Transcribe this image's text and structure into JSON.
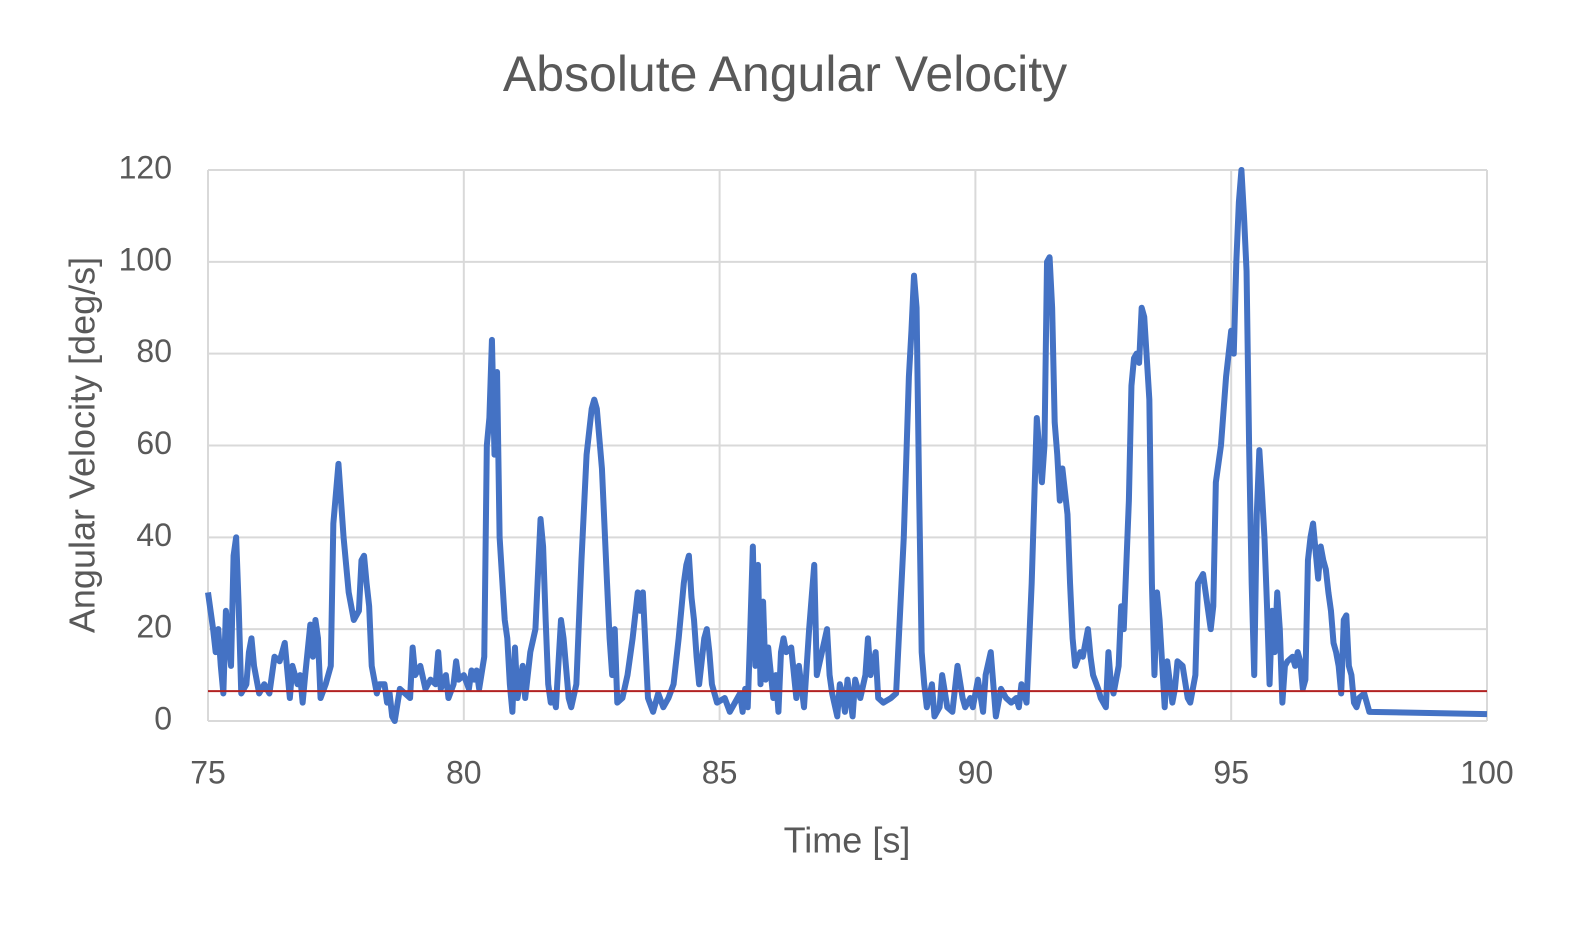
{
  "chart_data": {
    "type": "line",
    "title": "Absolute Angular Velocity",
    "x_label": "Time [s]",
    "y_label": "Angular Velocity [deg/s]",
    "xlim": [
      75,
      100
    ],
    "ylim": [
      0,
      120
    ],
    "xticks": [
      75,
      80,
      85,
      90,
      95,
      100
    ],
    "yticks": [
      0,
      20,
      40,
      60,
      80,
      100,
      120
    ],
    "grid": true,
    "series": [
      {
        "color": "#4472c4",
        "x": [
          75.0,
          75.1,
          75.15,
          75.2,
          75.25,
          75.3,
          75.35,
          75.45,
          75.5,
          75.55,
          75.6,
          75.65,
          75.75,
          75.8,
          75.85,
          75.9,
          76.0,
          76.1,
          76.2,
          76.3,
          76.4,
          76.5,
          76.6,
          76.65,
          76.75,
          76.8,
          76.85,
          76.9,
          77.0,
          77.05,
          77.1,
          77.15,
          77.2,
          77.3,
          77.4,
          77.45,
          77.55,
          77.65,
          77.75,
          77.8,
          77.85,
          77.95,
          78.0,
          78.05,
          78.1,
          78.15,
          78.2,
          78.3,
          78.35,
          78.45,
          78.5,
          78.55,
          78.6,
          78.65,
          78.75,
          78.85,
          78.95,
          79.0,
          79.05,
          79.15,
          79.25,
          79.35,
          79.45,
          79.5,
          79.55,
          79.65,
          79.7,
          79.8,
          79.85,
          79.9,
          80.0,
          80.1,
          80.15,
          80.2,
          80.25,
          80.3,
          80.4,
          80.45,
          80.5,
          80.55,
          80.6,
          80.65,
          80.7,
          80.8,
          80.85,
          80.9,
          80.95,
          81.0,
          81.05,
          81.15,
          81.2,
          81.3,
          81.4,
          81.5,
          81.55,
          81.6,
          81.65,
          81.7,
          81.75,
          81.8,
          81.9,
          81.95,
          82.05,
          82.1,
          82.2,
          82.3,
          82.4,
          82.5,
          82.55,
          82.6,
          82.7,
          82.8,
          82.85,
          82.9,
          82.95,
          83.0,
          83.1,
          83.2,
          83.3,
          83.4,
          83.45,
          83.5,
          83.6,
          83.7,
          83.8,
          83.9,
          84.0,
          84.1,
          84.2,
          84.3,
          84.35,
          84.4,
          84.45,
          84.5,
          84.55,
          84.6,
          84.7,
          84.75,
          84.8,
          84.85,
          84.95,
          85.1,
          85.2,
          85.3,
          85.4,
          85.45,
          85.5,
          85.55,
          85.6,
          85.65,
          85.7,
          85.75,
          85.8,
          85.85,
          85.9,
          85.95,
          86.05,
          86.1,
          86.15,
          86.2,
          86.25,
          86.3,
          86.4,
          86.5,
          86.55,
          86.65,
          86.75,
          86.8,
          86.85,
          86.9,
          87.0,
          87.1,
          87.15,
          87.2,
          87.3,
          87.35,
          87.4,
          87.45,
          87.5,
          87.6,
          87.65,
          87.75,
          87.85,
          87.9,
          87.95,
          88.05,
          88.1,
          88.2,
          88.35,
          88.45,
          88.6,
          88.7,
          88.75,
          88.8,
          88.85,
          88.9,
          88.95,
          89.0,
          89.05,
          89.15,
          89.2,
          89.3,
          89.35,
          89.45,
          89.55,
          89.65,
          89.75,
          89.8,
          89.9,
          89.95,
          90.05,
          90.15,
          90.2,
          90.3,
          90.35,
          90.4,
          90.5,
          90.6,
          90.7,
          90.8,
          90.85,
          90.9,
          91.0,
          91.1,
          91.2,
          91.3,
          91.35,
          91.4,
          91.45,
          91.5,
          91.55,
          91.6,
          91.65,
          91.7,
          91.75,
          91.8,
          91.85,
          91.9,
          91.95,
          92.05,
          92.1,
          92.2,
          92.25,
          92.3,
          92.4,
          92.45,
          92.55,
          92.6,
          92.65,
          92.7,
          92.8,
          92.85,
          92.9,
          93.0,
          93.05,
          93.1,
          93.15,
          93.2,
          93.25,
          93.3,
          93.4,
          93.45,
          93.5,
          93.55,
          93.6,
          93.7,
          93.75,
          93.85,
          93.9,
          93.95,
          94.05,
          94.15,
          94.2,
          94.3,
          94.35,
          94.45,
          94.5,
          94.55,
          94.6,
          94.65,
          94.7,
          94.8,
          94.9,
          95.0,
          95.05,
          95.1,
          95.15,
          95.2,
          95.25,
          95.3,
          95.35,
          95.4,
          95.45,
          95.5,
          95.55,
          95.6,
          95.65,
          95.7,
          95.75,
          95.8,
          95.85,
          95.9,
          95.95,
          96.0,
          96.05,
          96.1,
          96.2,
          96.25,
          96.3,
          96.35,
          96.4,
          96.45,
          96.5,
          96.55,
          96.6,
          96.65,
          96.7,
          96.75,
          96.8,
          96.85,
          96.9,
          96.95,
          97.0,
          97.05,
          97.1,
          97.15,
          97.2,
          97.25,
          97.3,
          97.35,
          97.4,
          97.45,
          97.5,
          97.6,
          97.7,
          100.0
        ],
        "values": [
          28,
          20,
          15,
          20,
          12,
          6,
          24,
          12,
          36,
          40,
          25,
          6,
          8,
          15,
          18,
          12,
          6,
          8,
          6,
          14,
          13,
          17,
          5,
          12,
          8,
          10,
          4,
          10,
          21,
          14,
          22,
          18,
          5,
          8,
          12,
          43,
          56,
          40,
          28,
          25,
          22,
          24,
          35,
          36,
          30,
          25,
          12,
          6,
          8,
          8,
          4,
          6,
          1,
          0,
          7,
          6,
          5,
          16,
          10,
          12,
          7,
          9,
          8,
          15,
          7,
          10,
          5,
          8,
          13,
          9,
          10,
          7,
          11,
          9,
          11,
          7,
          14,
          60,
          66,
          83,
          58,
          76,
          40,
          22,
          18,
          8,
          2,
          16,
          5,
          12,
          5,
          15,
          20,
          44,
          38,
          22,
          8,
          4,
          6,
          3,
          22,
          18,
          5,
          3,
          8,
          35,
          58,
          68,
          70,
          68,
          55,
          30,
          18,
          10,
          20,
          4,
          5,
          10,
          18,
          28,
          24,
          28,
          5,
          2,
          6,
          3,
          5,
          8,
          18,
          30,
          34,
          36,
          27,
          22,
          14,
          8,
          18,
          20,
          15,
          8,
          4,
          5,
          2,
          4,
          6,
          2,
          7,
          3,
          20,
          38,
          12,
          34,
          8,
          26,
          9,
          16,
          5,
          10,
          2,
          15,
          18,
          15,
          16,
          5,
          12,
          3,
          20,
          27,
          34,
          10,
          15,
          20,
          10,
          6,
          1,
          8,
          6,
          2,
          9,
          1,
          9,
          5,
          10,
          18,
          10,
          15,
          5,
          4,
          5,
          6,
          40,
          75,
          85,
          97,
          90,
          50,
          15,
          8,
          3,
          8,
          1,
          3,
          10,
          3,
          2,
          12,
          5,
          3,
          5,
          3,
          9,
          2,
          10,
          15,
          8,
          1,
          7,
          5,
          4,
          5,
          3,
          8,
          4,
          30,
          66,
          52,
          60,
          100,
          101,
          90,
          65,
          58,
          48,
          55,
          50,
          45,
          30,
          18,
          12,
          15,
          14,
          20,
          14,
          10,
          7,
          5,
          3,
          15,
          8,
          6,
          12,
          25,
          20,
          48,
          73,
          79,
          80,
          78,
          90,
          88,
          70,
          30,
          10,
          28,
          22,
          3,
          13,
          4,
          7,
          13,
          12,
          5,
          4,
          10,
          30,
          32,
          28,
          24,
          20,
          25,
          52,
          60,
          75,
          85,
          80,
          100,
          113,
          120,
          110,
          98,
          60,
          30,
          10,
          45,
          59,
          50,
          40,
          25,
          8,
          24,
          15,
          28,
          20,
          4,
          12,
          13,
          14,
          12,
          15,
          13,
          7,
          9,
          35,
          40,
          43,
          37,
          31,
          38,
          35,
          33,
          28,
          24,
          17,
          15,
          12,
          6,
          22,
          23,
          12,
          10,
          4,
          3,
          5,
          6,
          2,
          1.5
        ]
      },
      {
        "color": "#b22222",
        "x": [
          75,
          100
        ],
        "values": [
          6.5,
          6.5
        ]
      }
    ]
  }
}
